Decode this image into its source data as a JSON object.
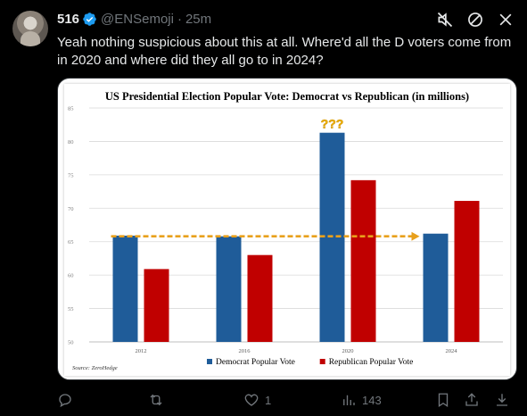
{
  "tweet": {
    "author_name": "516",
    "handle": "@ENSemoji",
    "separator": "·",
    "time": "25m",
    "text": "Yeah nothing suspicious about this at all. Where'd all the D voters come from in 2020 and where did they all go to in 2024?",
    "verified_color": "#1d9bf0"
  },
  "header_icons": [
    "mute-icon",
    "block-icon",
    "close-icon"
  ],
  "actions": {
    "reply_count": "",
    "retweet_count": "",
    "like_count": "1",
    "views_count": "143"
  },
  "chart_data": {
    "type": "bar",
    "title": "US Presidential Election Popular Vote: Democrat vs Republican (in millions)",
    "categories": [
      "2012",
      "2016",
      "2020",
      "2024"
    ],
    "series": [
      {
        "name": "Democrat Popular Vote",
        "color": "#1f5c99",
        "values": [
          65.9,
          65.8,
          81.3,
          66.2
        ]
      },
      {
        "name": "Republican Popular Vote",
        "color": "#c00000",
        "values": [
          60.9,
          63.0,
          74.2,
          71.1
        ]
      }
    ],
    "ylim": [
      50,
      85
    ],
    "yticks": [
      "50",
      "55",
      "60",
      "65",
      "70",
      "75",
      "80",
      "85"
    ],
    "grid": true,
    "legend": "bottom",
    "trend_arrow_level": 65.8,
    "trend_color": "#e8a01c",
    "annotation": "???",
    "source": "Source: ZeroHedge"
  }
}
